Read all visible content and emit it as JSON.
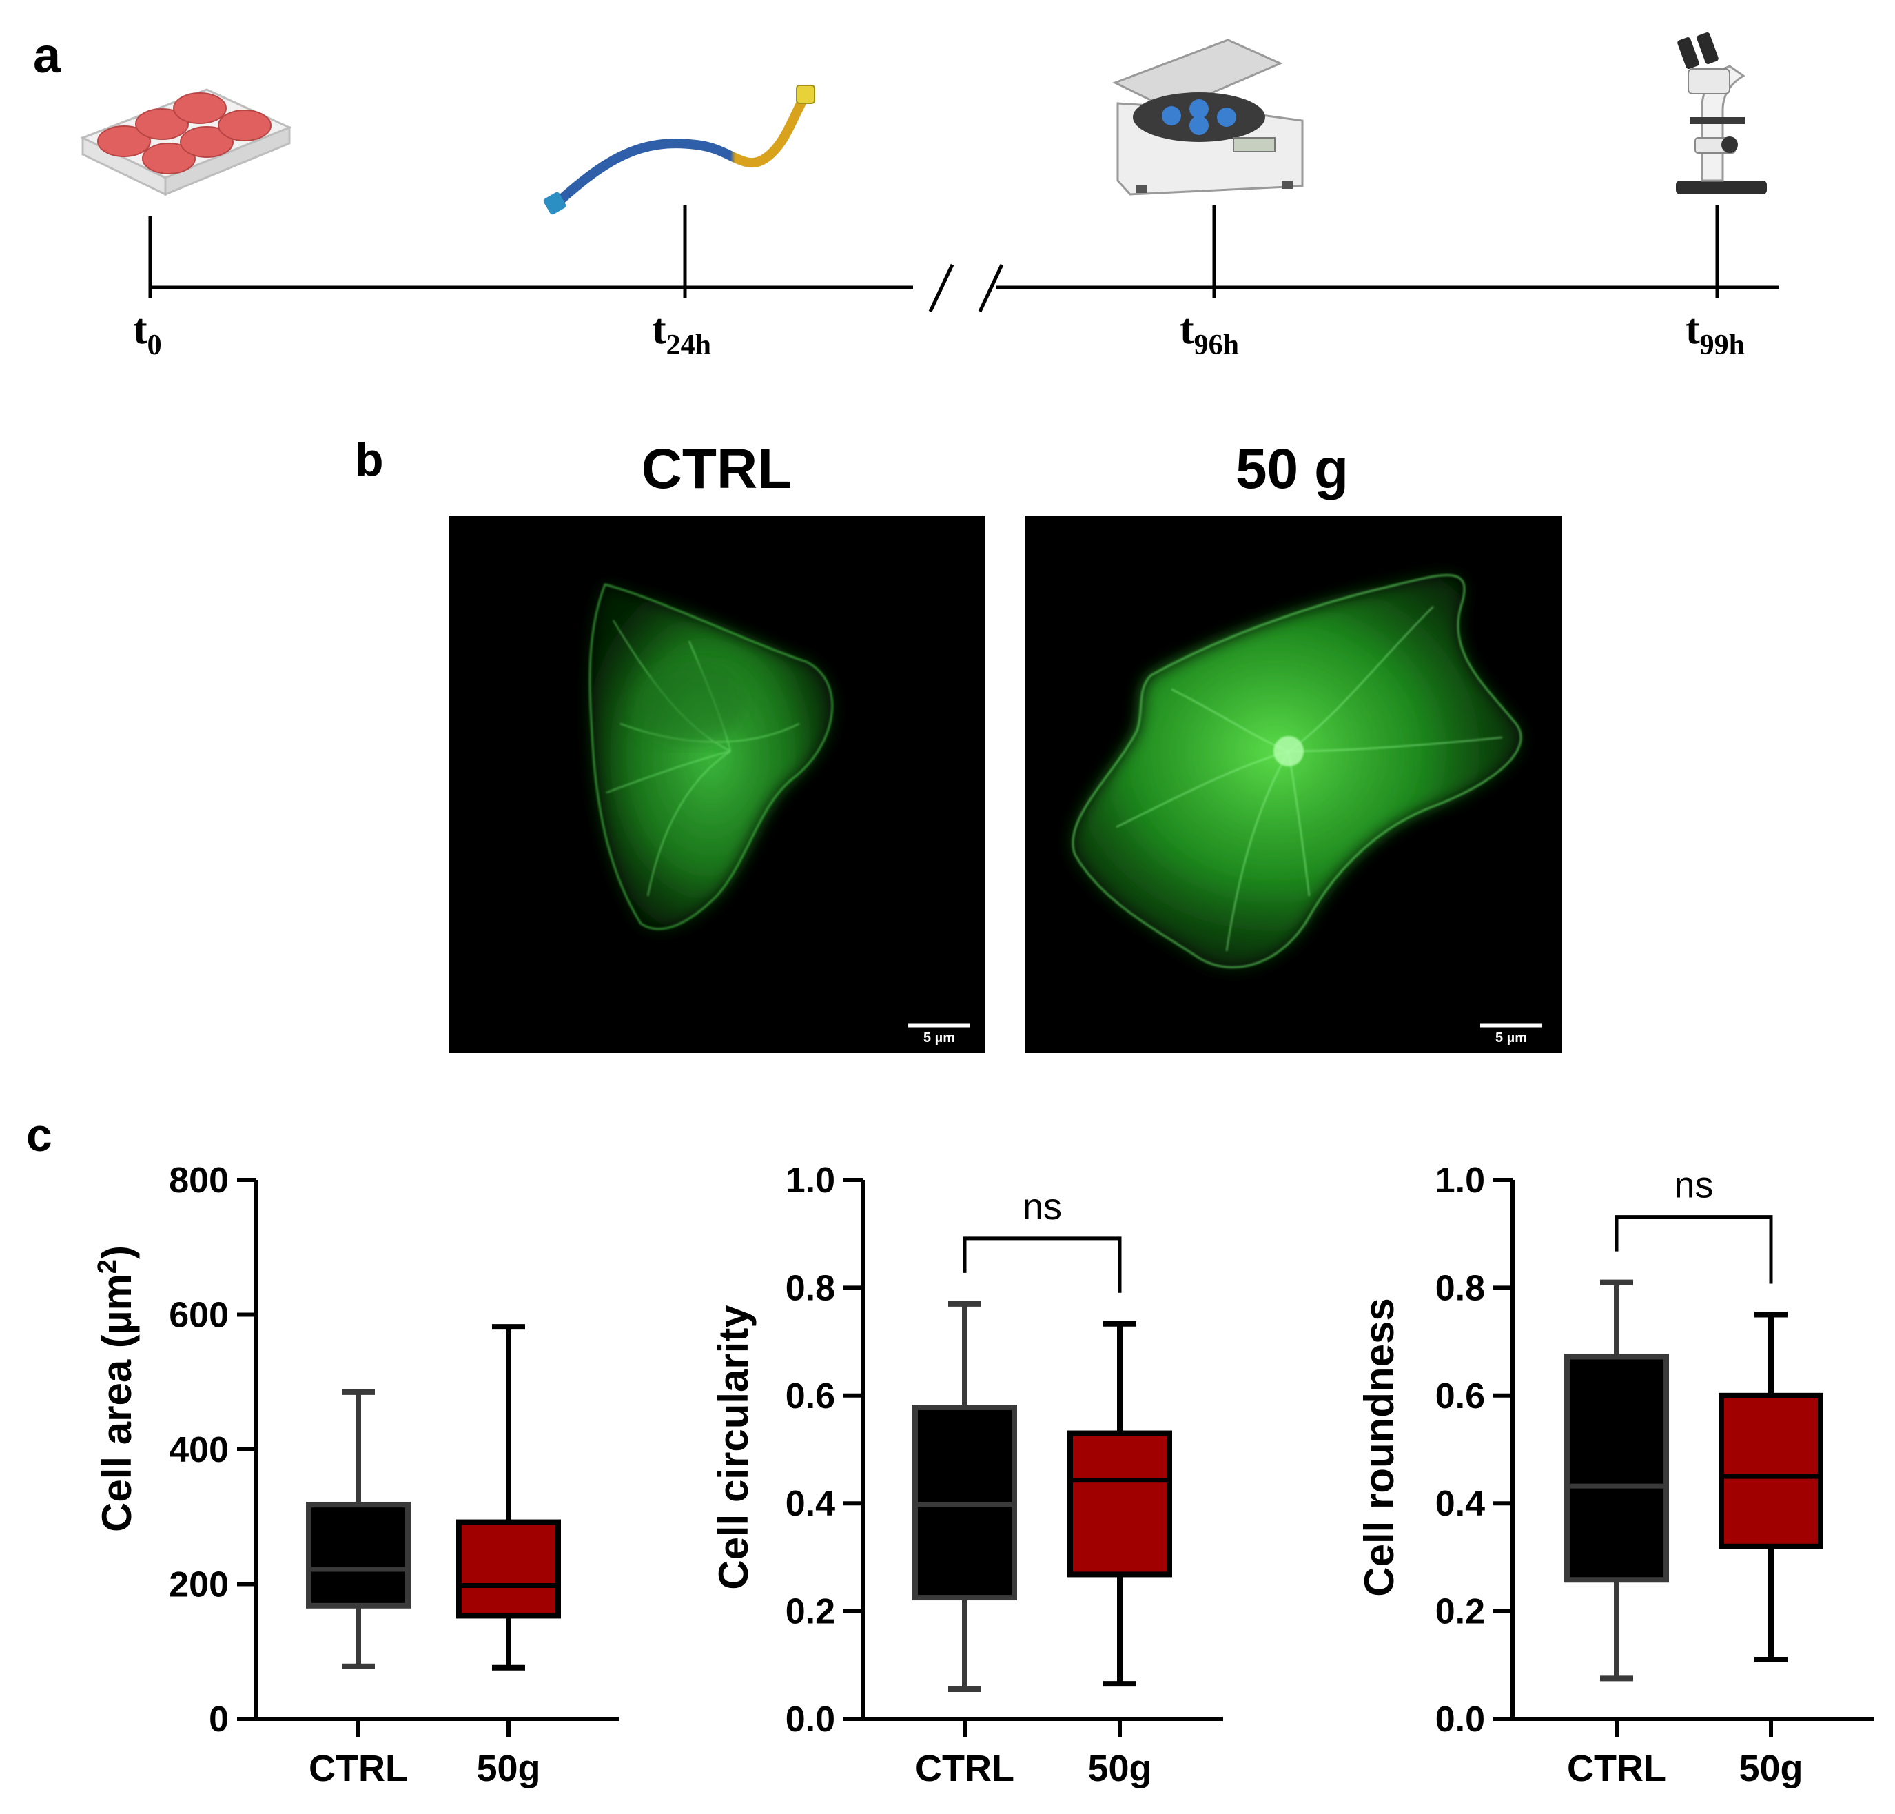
{
  "panels": {
    "a": {
      "letter": "a"
    },
    "b": {
      "letter": "b"
    },
    "c": {
      "letter": "c"
    }
  },
  "timeline": {
    "points": [
      {
        "base": "t",
        "sub": "0"
      },
      {
        "base": "t",
        "sub": "24h"
      },
      {
        "base": "t",
        "sub": "96h"
      },
      {
        "base": "t",
        "sub": "99h"
      }
    ]
  },
  "images": {
    "left_title": "CTRL",
    "right_title": "50 g",
    "left_scalebar": "5 µm",
    "right_scalebar": "5 µm"
  },
  "colors": {
    "ctrl_box": "#000000",
    "ctrl_edge": "#3a3a3a",
    "g50_box": "#a00000",
    "g50_edge": "#000000",
    "fluorescence": "#33cc33"
  },
  "chart_data": [
    {
      "type": "box",
      "ylabel_main": "Cell area (µm",
      "ylabel_sup": "2",
      "ylabel_end": ")",
      "ylim": [
        0,
        800
      ],
      "yticks": [
        "0",
        "200",
        "400",
        "600",
        "800"
      ],
      "categories": [
        "CTRL",
        "50g"
      ],
      "boxes": [
        {
          "min": 78,
          "q1": 168,
          "median": 222,
          "q3": 318,
          "max": 485
        },
        {
          "min": 76,
          "q1": 153,
          "median": 198,
          "q3": 292,
          "max": 582
        }
      ],
      "annotation": ""
    },
    {
      "type": "box",
      "ylabel_main": "Cell circularity",
      "ylim": [
        0,
        1
      ],
      "yticks": [
        "0.0",
        "0.2",
        "0.4",
        "0.6",
        "0.8",
        "1.0"
      ],
      "categories": [
        "CTRL",
        "50g"
      ],
      "boxes": [
        {
          "min": 0.055,
          "q1": 0.225,
          "median": 0.397,
          "q3": 0.578,
          "max": 0.77
        },
        {
          "min": 0.065,
          "q1": 0.268,
          "median": 0.443,
          "q3": 0.53,
          "max": 0.733
        }
      ],
      "annotation": "ns"
    },
    {
      "type": "box",
      "ylabel_main": "Cell roundness",
      "ylim": [
        0,
        1
      ],
      "yticks": [
        "0.0",
        "0.2",
        "0.4",
        "0.6",
        "0.8",
        "1.0"
      ],
      "categories": [
        "CTRL",
        "50g"
      ],
      "boxes": [
        {
          "min": 0.075,
          "q1": 0.258,
          "median": 0.432,
          "q3": 0.672,
          "max": 0.81
        },
        {
          "min": 0.11,
          "q1": 0.32,
          "median": 0.45,
          "q3": 0.6,
          "max": 0.75
        }
      ],
      "annotation": "ns"
    }
  ]
}
